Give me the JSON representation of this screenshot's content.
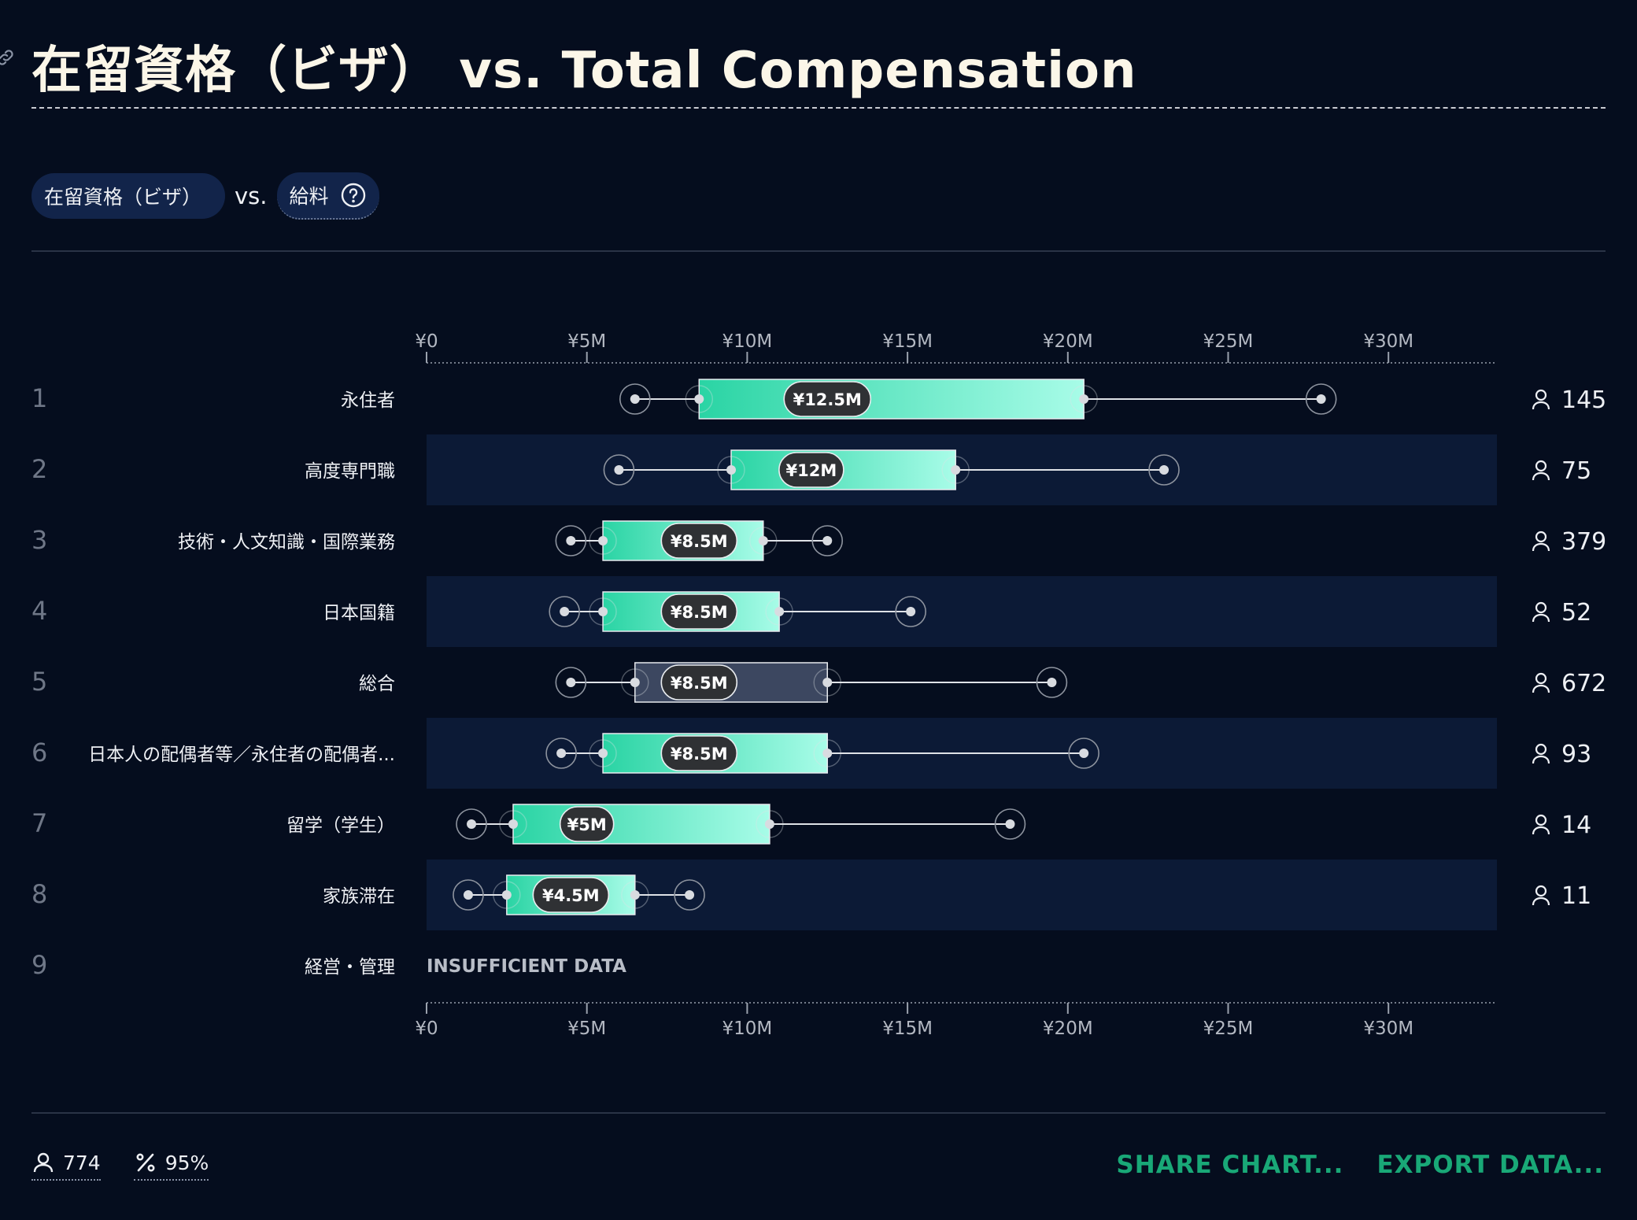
{
  "header": {
    "title": "在留資格（ビザ） vs. Total Compensation"
  },
  "filters": {
    "chip1": "在留資格（ビザ）",
    "vs": "vs.",
    "chip2": "給料"
  },
  "footer": {
    "respondents": "774",
    "confidence": "95%",
    "share_label": "SHARE CHART...",
    "export_label": "EXPORT DATA..."
  },
  "colors": {
    "background": "#050d1e",
    "band": "#0c1a36",
    "box_start": "#2ad4a4",
    "box_end": "#a8fce8",
    "overall_box": "#3c4760",
    "accent": "#19a877"
  },
  "chart_data": {
    "type": "box",
    "x_unit": "JPY",
    "x_ticks": [
      "¥0",
      "¥5M",
      "¥10M",
      "¥15M",
      "¥20M",
      "¥25M",
      "¥30M"
    ],
    "x_tick_values": [
      0,
      5,
      10,
      15,
      20,
      25,
      30
    ],
    "xlim": [
      0,
      33.5
    ],
    "insufficient_label": "INSUFFICIENT DATA",
    "rows": [
      {
        "rank": "1",
        "label": "永住者",
        "min": 6.5,
        "q1": 8.5,
        "median": 12.5,
        "median_label": "¥12.5M",
        "q3": 20.5,
        "max": 27.9,
        "count": "145",
        "overall": false
      },
      {
        "rank": "2",
        "label": "高度専門職",
        "min": 6.0,
        "q1": 9.5,
        "median": 12.0,
        "median_label": "¥12M",
        "q3": 16.5,
        "max": 23.0,
        "count": "75",
        "overall": false
      },
      {
        "rank": "3",
        "label": "技術・人文知識・国際業務",
        "min": 4.5,
        "q1": 5.5,
        "median": 8.5,
        "median_label": "¥8.5M",
        "q3": 10.5,
        "max": 12.5,
        "count": "379",
        "overall": false
      },
      {
        "rank": "4",
        "label": "日本国籍",
        "min": 4.3,
        "q1": 5.5,
        "median": 8.5,
        "median_label": "¥8.5M",
        "q3": 11.0,
        "max": 15.1,
        "count": "52",
        "overall": false
      },
      {
        "rank": "5",
        "label": "総合",
        "min": 4.5,
        "q1": 6.5,
        "median": 8.5,
        "median_label": "¥8.5M",
        "q3": 12.5,
        "max": 19.5,
        "count": "672",
        "overall": true
      },
      {
        "rank": "6",
        "label": "日本人の配偶者等／永住者の配偶者...",
        "min": 4.2,
        "q1": 5.5,
        "median": 8.5,
        "median_label": "¥8.5M",
        "q3": 12.5,
        "max": 20.5,
        "count": "93",
        "overall": false
      },
      {
        "rank": "7",
        "label": "留学（学生）",
        "min": 1.4,
        "q1": 2.7,
        "median": 5.0,
        "median_label": "¥5M",
        "q3": 10.7,
        "max": 18.2,
        "count": "14",
        "overall": false
      },
      {
        "rank": "8",
        "label": "家族滞在",
        "min": 1.3,
        "q1": 2.5,
        "median": 4.5,
        "median_label": "¥4.5M",
        "q3": 6.5,
        "max": 8.2,
        "count": "11",
        "overall": false
      },
      {
        "rank": "9",
        "label": "経営・管理",
        "insufficient": true
      }
    ]
  }
}
